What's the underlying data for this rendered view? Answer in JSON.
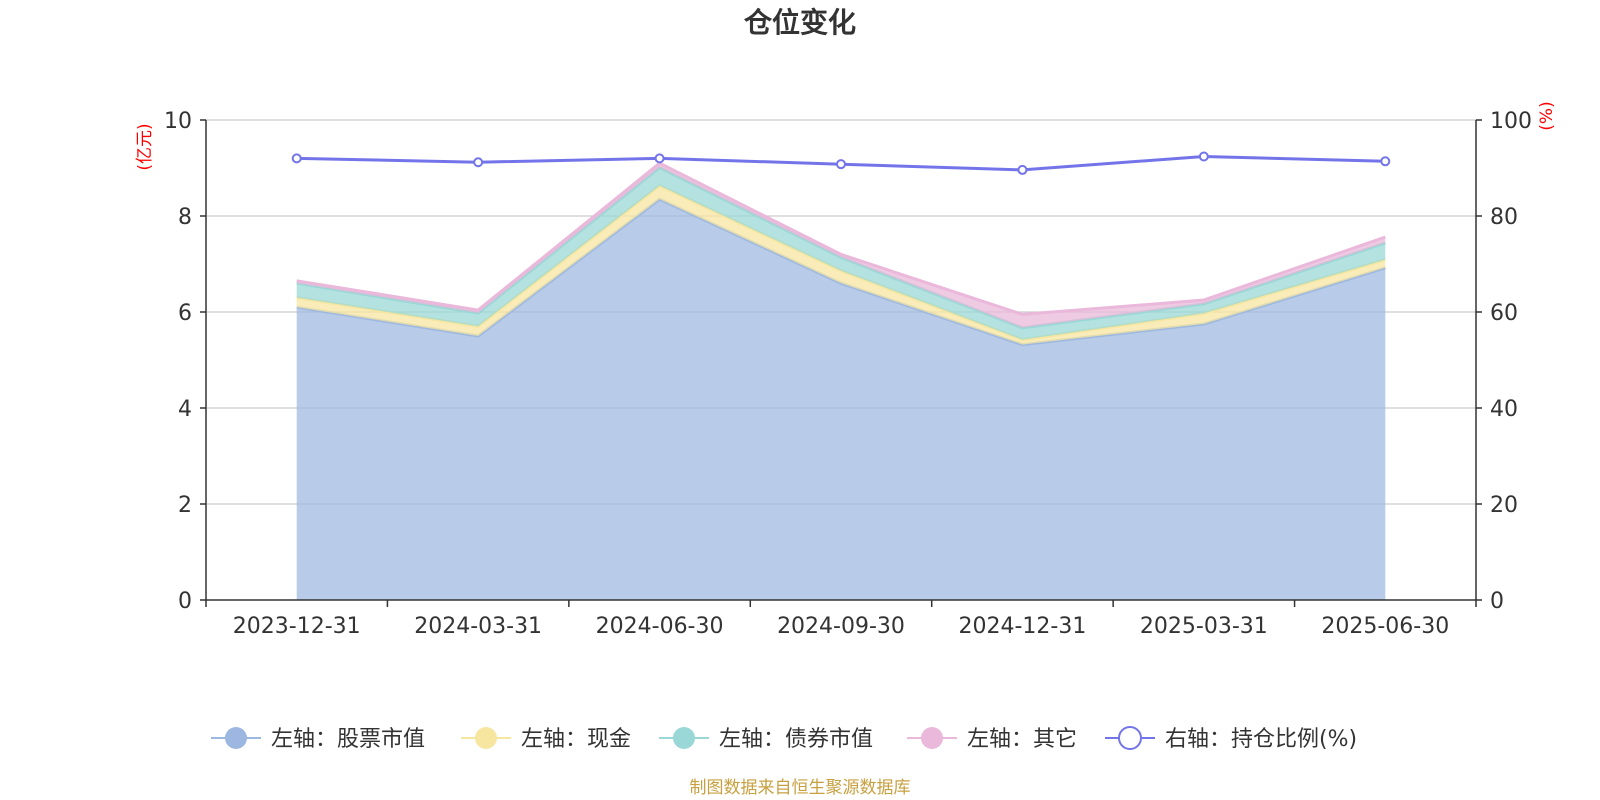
{
  "chart_data": {
    "type": "area",
    "title": "仓位变化",
    "categories": [
      "2023-12-31",
      "2024-03-31",
      "2024-06-30",
      "2024-09-30",
      "2024-12-31",
      "2025-03-31",
      "2025-06-30"
    ],
    "series": [
      {
        "name": "左轴：股票市值",
        "axis": "left",
        "stacked": true,
        "color": "#9db8e0",
        "values": [
          6.1,
          5.5,
          8.35,
          6.6,
          5.32,
          5.75,
          6.92
        ]
      },
      {
        "name": "左轴：现金",
        "axis": "left",
        "stacked": true,
        "color": "#f7e6a0",
        "values": [
          0.2,
          0.2,
          0.28,
          0.26,
          0.1,
          0.22,
          0.17
        ]
      },
      {
        "name": "左轴：债券市值",
        "axis": "left",
        "stacked": true,
        "color": "#99d8d6",
        "values": [
          0.3,
          0.28,
          0.38,
          0.28,
          0.25,
          0.2,
          0.35
        ]
      },
      {
        "name": "左轴：其它",
        "axis": "left",
        "stacked": true,
        "color": "#eab8da",
        "values": [
          0.05,
          0.06,
          0.09,
          0.06,
          0.28,
          0.08,
          0.12
        ]
      },
      {
        "name": "右轴：持仓比例(%)",
        "axis": "right",
        "type": "line",
        "color": "#7474ea",
        "values": [
          92,
          91.2,
          92,
          90.8,
          89.6,
          92.4,
          91.4
        ]
      }
    ],
    "y_left": {
      "unit": "(亿元)",
      "ylim": [
        0,
        10
      ],
      "ticks": [
        0,
        2,
        4,
        6,
        8,
        10
      ]
    },
    "y_right": {
      "unit": "(%)",
      "ylim": [
        0,
        100
      ],
      "ticks": [
        0,
        20,
        40,
        60,
        80,
        100
      ]
    },
    "grid": true,
    "legend_position": "bottom",
    "source": "制图数据来自恒生聚源数据库"
  }
}
